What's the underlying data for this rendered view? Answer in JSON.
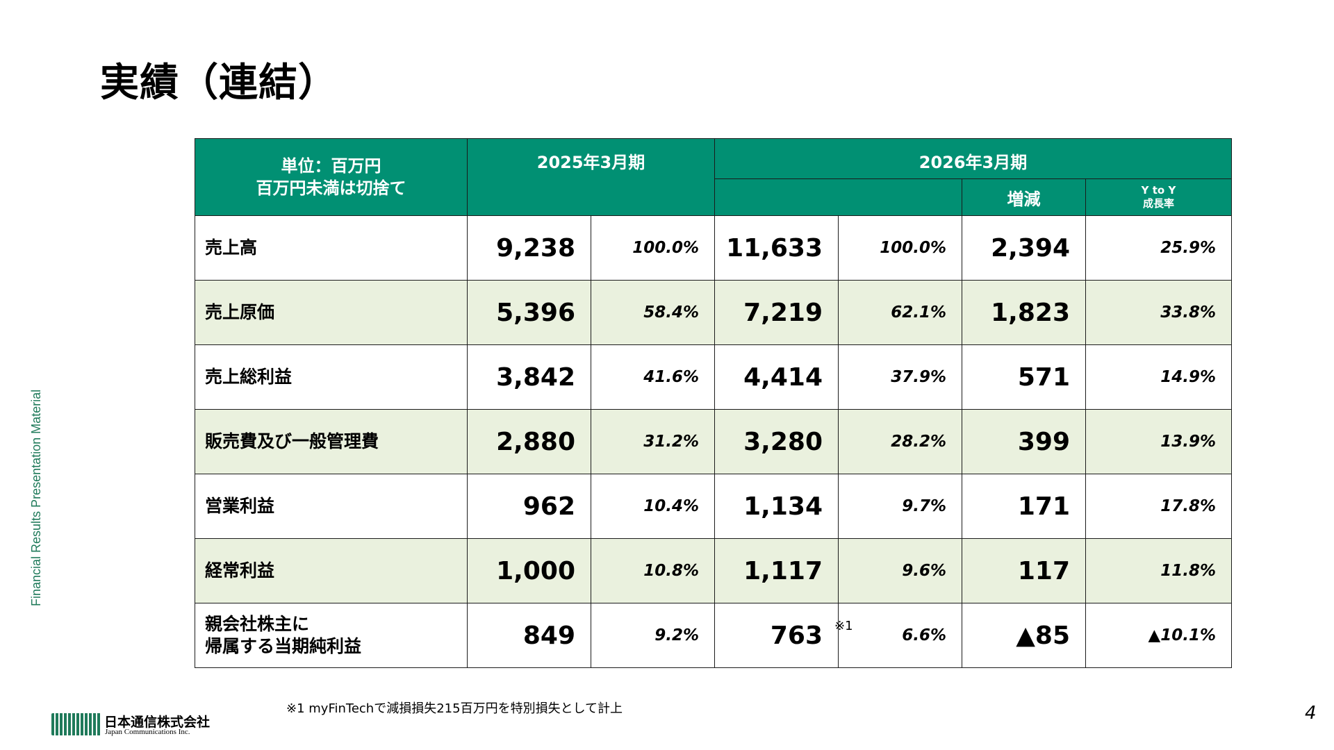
{
  "title": "実績（連結）",
  "side_label": "Financial Results Presentation Material",
  "table": {
    "unit_line1": "単位：百万円",
    "unit_line2": "百万円未満は切捨て",
    "year_prev": "2025年3月期",
    "year_curr": "2026年3月期",
    "change_header": "増減",
    "yoy_line1": "Y to Y",
    "yoy_line2": "成長率",
    "rows": [
      {
        "label": "売上高",
        "prev": "9,238",
        "prev_pct": "100.0%",
        "curr": "11,633",
        "curr_pct": "100.0%",
        "change": "2,394",
        "yoy": "25.9%"
      },
      {
        "label": "売上原価",
        "prev": "5,396",
        "prev_pct": "58.4%",
        "curr": "7,219",
        "curr_pct": "62.1%",
        "change": "1,823",
        "yoy": "33.8%"
      },
      {
        "label": "売上総利益",
        "prev": "3,842",
        "prev_pct": "41.6%",
        "curr": "4,414",
        "curr_pct": "37.9%",
        "change": "571",
        "yoy": "14.9%"
      },
      {
        "label": "販売費及び一般管理費",
        "prev": "2,880",
        "prev_pct": "31.2%",
        "curr": "3,280",
        "curr_pct": "28.2%",
        "change": "399",
        "yoy": "13.9%"
      },
      {
        "label": "営業利益",
        "prev": "962",
        "prev_pct": "10.4%",
        "curr": "1,134",
        "curr_pct": "9.7%",
        "change": "171",
        "yoy": "17.8%"
      },
      {
        "label": "経常利益",
        "prev": "1,000",
        "prev_pct": "10.8%",
        "curr": "1,117",
        "curr_pct": "9.6%",
        "change": "117",
        "yoy": "11.8%"
      },
      {
        "label_line1": "親会社株主に",
        "label_line2": "帰属する当期純利益",
        "prev": "849",
        "prev_pct": "9.2%",
        "curr": "763",
        "curr_note": "※1",
        "curr_pct": "6.6%",
        "change": "▲85",
        "yoy": "▲10.1%"
      }
    ]
  },
  "footnote": "※1 myFinTechで減損損失215百万円を特別損失として計上",
  "page_number": "4",
  "logo": {
    "name": "日本通信株式会社",
    "english": "Japan Communications Inc."
  },
  "colors": {
    "header_bg": "#019073",
    "alt_row_bg": "#eaf1de",
    "side_label": "#1f7a5a"
  }
}
